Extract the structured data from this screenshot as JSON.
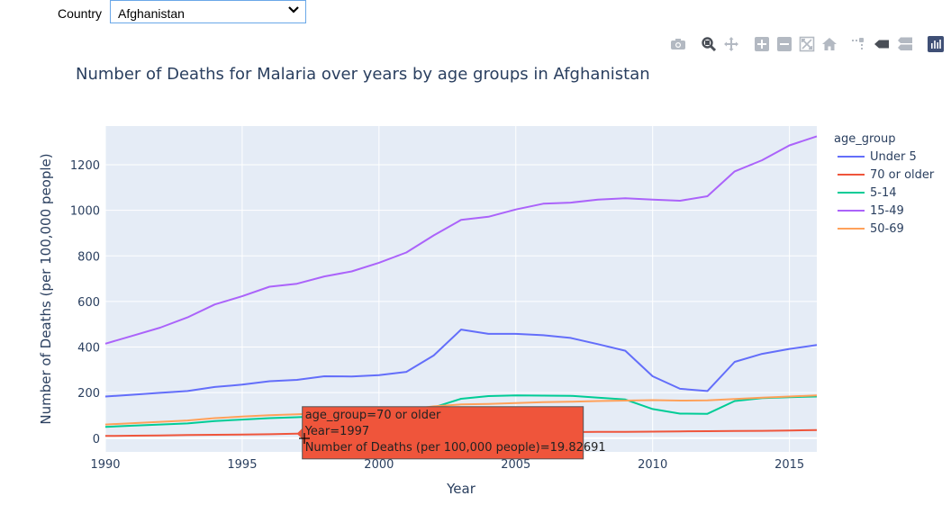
{
  "dropdown": {
    "label": "Country",
    "selected": "Afghanistan"
  },
  "modebar": {
    "buttons": [
      "camera-icon",
      "zoom-icon",
      "pan-icon",
      "zoom-in-icon",
      "zoom-out-icon",
      "autoscale-icon",
      "reset-axes-icon",
      "spike-lines-icon",
      "hover-closest-icon",
      "hover-compare-icon",
      "plotly-logo-icon"
    ]
  },
  "chart_data": {
    "type": "line",
    "title": "Number of Deaths for Malaria over years by age groups in Afghanistan",
    "xlabel": "Year",
    "ylabel": "Number of Deaths (per 100,000 people)",
    "xlim": [
      1990,
      2016
    ],
    "ylim": [
      -60,
      1370
    ],
    "x_ticks": [
      "1990",
      "1995",
      "2000",
      "2005",
      "2010",
      "2015"
    ],
    "y_ticks": [
      "0",
      "200",
      "400",
      "600",
      "800",
      "1000",
      "1200"
    ],
    "grid": true,
    "legend": {
      "title": "age_group",
      "placement": "right"
    },
    "x": [
      1990,
      1991,
      1992,
      1993,
      1994,
      1995,
      1996,
      1997,
      1998,
      1999,
      2000,
      2001,
      2002,
      2003,
      2004,
      2005,
      2006,
      2007,
      2008,
      2009,
      2010,
      2011,
      2012,
      2013,
      2014,
      2015,
      2016
    ],
    "series": [
      {
        "name": "Under 5",
        "color": "#636efa",
        "values": [
          183,
          191,
          199,
          207,
          225,
          235,
          250,
          256,
          272,
          271,
          277,
          291,
          363,
          477,
          458,
          458,
          452,
          440,
          413,
          384,
          272,
          217,
          207,
          335,
          370,
          392,
          409
        ]
      },
      {
        "name": "70 or older",
        "color": "#ef553b",
        "values": [
          10,
          11,
          12,
          14,
          15,
          16,
          17.5,
          19.83,
          20.8,
          21.6,
          22.4,
          23.1,
          24,
          25,
          25.6,
          26,
          26.5,
          27,
          27.5,
          28,
          29,
          30,
          30.8,
          31.5,
          32.5,
          33.5,
          36
        ]
      },
      {
        "name": "5-14",
        "color": "#00cc96",
        "values": [
          50,
          55,
          60,
          65,
          75,
          82,
          88,
          92,
          97,
          103,
          108,
          113,
          135,
          173,
          185,
          188,
          187,
          186,
          178,
          170,
          128,
          108,
          107,
          163,
          176,
          180,
          183
        ]
      },
      {
        "name": "15-49",
        "color": "#ab63fa",
        "values": [
          415,
          450,
          485,
          530,
          587,
          623,
          665,
          678,
          710,
          732,
          770,
          815,
          890,
          958,
          972,
          1004,
          1029,
          1034,
          1047,
          1053,
          1047,
          1042,
          1062,
          1171,
          1220,
          1285,
          1325
        ]
      },
      {
        "name": "50-69",
        "color": "#ffa15a",
        "values": [
          60,
          66,
          72,
          78,
          88,
          95,
          101,
          105,
          110,
          115,
          120,
          125,
          140,
          148,
          150,
          154,
          158,
          160,
          163,
          165,
          167,
          165,
          166,
          172,
          178,
          183,
          188
        ]
      }
    ],
    "hover": {
      "series": "70 or older",
      "color": "#ef553b",
      "lines": [
        "age_group=70 or older",
        "Year=1997",
        "Number of Deaths (per 100,000 people)=19.82691"
      ]
    }
  }
}
